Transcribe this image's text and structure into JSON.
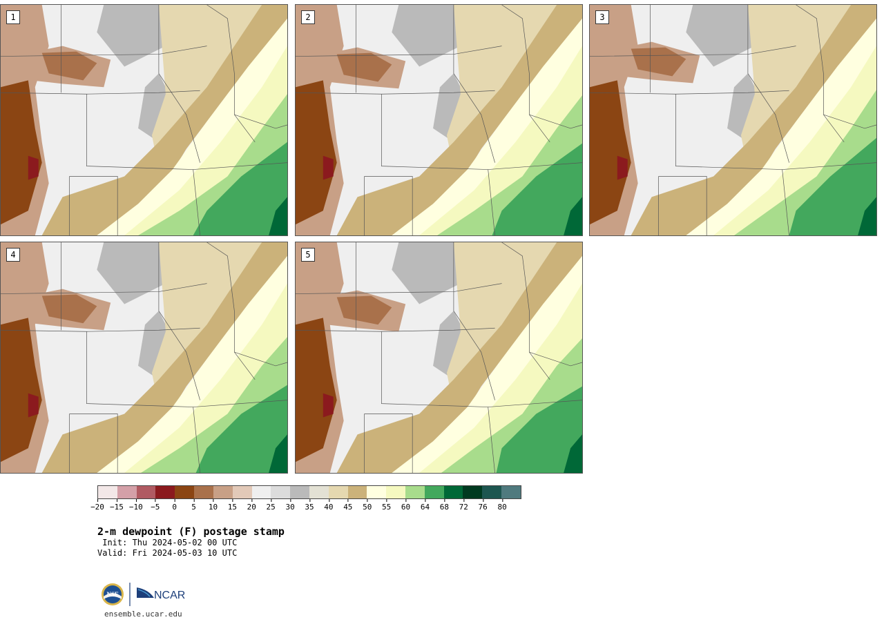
{
  "panels": [
    {
      "label": "1"
    },
    {
      "label": "2"
    },
    {
      "label": "3"
    },
    {
      "label": "4"
    },
    {
      "label": "5"
    }
  ],
  "colorbar": {
    "colors": [
      "#f3e8e8",
      "#d4a0a8",
      "#b05a62",
      "#8b1a1e",
      "#8b4513",
      "#a9714b",
      "#c8a086",
      "#e2c9b8",
      "#efefef",
      "#dcdcdc",
      "#bababa",
      "#e3e1d4",
      "#e5d8b0",
      "#cbb27a",
      "#ffffe0",
      "#f5f9c0",
      "#a8dc8c",
      "#43a85d",
      "#006837",
      "#003a20",
      "#1d5650",
      "#4f7a7e"
    ],
    "ticks": [
      "−20",
      "−15",
      "−10",
      "−5",
      "0",
      "5",
      "10",
      "15",
      "20",
      "25",
      "30",
      "35",
      "40",
      "45",
      "50",
      "55",
      "60",
      "64",
      "68",
      "72",
      "76",
      "80"
    ]
  },
  "title": "2-m dewpoint (F) postage stamp",
  "init": " Init: Thu 2024-05-02 00 UTC",
  "valid": "Valid: Fri 2024-05-03 10 UTC",
  "logos": {
    "nsf": "NSF",
    "ncar": "NCAR"
  },
  "footer": "ensemble.ucar.edu"
}
